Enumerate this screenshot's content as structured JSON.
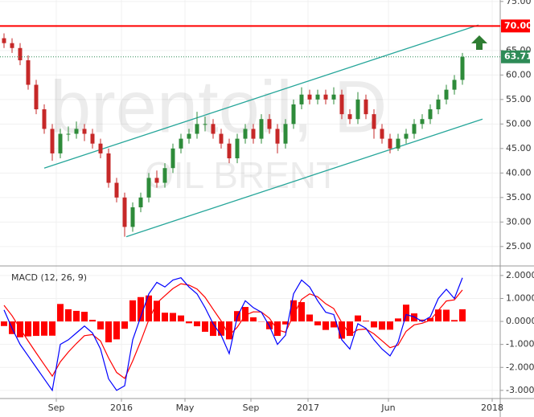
{
  "chart_data": [
    {
      "type": "candlestick",
      "title": "brentoil, D",
      "subtitle": "OIL BRENT",
      "up_color": "#2e8b3a",
      "down_color": "#c62828",
      "grid": true,
      "xlim": [
        0,
        62.2
      ],
      "xticks": [
        {
          "value": 7,
          "label": "Sep"
        },
        {
          "value": 15.1,
          "label": "2016"
        },
        {
          "value": 23,
          "label": "May"
        },
        {
          "value": 31.2,
          "label": "Sep"
        },
        {
          "value": 38.3,
          "label": "2017"
        },
        {
          "value": 48.3,
          "label": "Jun"
        },
        {
          "value": 61.2,
          "label": "2018"
        }
      ],
      "ylim": [
        21.2,
        75.3
      ],
      "yticks": [
        {
          "value": 25,
          "label": "25.00"
        },
        {
          "value": 30,
          "label": "30.00"
        },
        {
          "value": 35,
          "label": "35.00"
        },
        {
          "value": 40,
          "label": "40.00"
        },
        {
          "value": 45,
          "label": "45.00"
        },
        {
          "value": 50,
          "label": "50.00"
        },
        {
          "value": 55,
          "label": "55.00"
        },
        {
          "value": 60,
          "label": "60.00"
        },
        {
          "value": 65,
          "label": "65.00"
        },
        {
          "value": 70,
          "label": "70.00"
        },
        {
          "value": 75,
          "label": "75.00"
        }
      ],
      "ohlc": [
        [
          67.5,
          68.5,
          65.5,
          66.5
        ],
        [
          66.5,
          67.5,
          64.5,
          65.5
        ],
        [
          65.5,
          66.5,
          62,
          63
        ],
        [
          63,
          64,
          57,
          58
        ],
        [
          58,
          59,
          52,
          53
        ],
        [
          53,
          54,
          48,
          49
        ],
        [
          49,
          50,
          42.5,
          44
        ],
        [
          44,
          49,
          43,
          48
        ],
        [
          48,
          49.5,
          46.5,
          48
        ],
        [
          48,
          50.5,
          47,
          49
        ],
        [
          49,
          50,
          46.5,
          48
        ],
        [
          48,
          49,
          45,
          46
        ],
        [
          46,
          47,
          43,
          44
        ],
        [
          44,
          45,
          37,
          38
        ],
        [
          38,
          39,
          34,
          35
        ],
        [
          35,
          36,
          27,
          29
        ],
        [
          29,
          34,
          28,
          33
        ],
        [
          33,
          36,
          32,
          35
        ],
        [
          35,
          40,
          34,
          39
        ],
        [
          39,
          40.5,
          37,
          38
        ],
        [
          38,
          42,
          37,
          41
        ],
        [
          41,
          46,
          40,
          45
        ],
        [
          45,
          48,
          44,
          47
        ],
        [
          47,
          49,
          46,
          48
        ],
        [
          48,
          52.5,
          47,
          50
        ],
        [
          50,
          51.5,
          48.5,
          50
        ],
        [
          50,
          51,
          47,
          48
        ],
        [
          48,
          49,
          45,
          46
        ],
        [
          46,
          47,
          42,
          43
        ],
        [
          43,
          48,
          42,
          47
        ],
        [
          47,
          50,
          46,
          49
        ],
        [
          49,
          50,
          46,
          47
        ],
        [
          47,
          52,
          46,
          51
        ],
        [
          51,
          52,
          48,
          49
        ],
        [
          49,
          50,
          44,
          46
        ],
        [
          46,
          51,
          45,
          50
        ],
        [
          50,
          55,
          49,
          54
        ],
        [
          54,
          57.5,
          53,
          56
        ],
        [
          56,
          57,
          54,
          55
        ],
        [
          55,
          57,
          54,
          56
        ],
        [
          56,
          57,
          54,
          55
        ],
        [
          55,
          57.5,
          54,
          56
        ],
        [
          56,
          57,
          51,
          52
        ],
        [
          52,
          53,
          50,
          51
        ],
        [
          51,
          56.5,
          50,
          55
        ],
        [
          55,
          56,
          51,
          52
        ],
        [
          52,
          53,
          47,
          49
        ],
        [
          49,
          50,
          46,
          47
        ],
        [
          47,
          48,
          44,
          45
        ],
        [
          45,
          48,
          44.5,
          47
        ],
        [
          47,
          49,
          46,
          48
        ],
        [
          48,
          51,
          47,
          50
        ],
        [
          50,
          52,
          49,
          51
        ],
        [
          51,
          54,
          50,
          53
        ],
        [
          53,
          56,
          52,
          55
        ],
        [
          55,
          58,
          54,
          57
        ],
        [
          57,
          60,
          56,
          59
        ],
        [
          59,
          64.5,
          58,
          63.71
        ]
      ],
      "hlines": [
        {
          "value": 70,
          "label": "70.00",
          "color": "#ff0000"
        },
        {
          "value": 63.71,
          "label": "63.71",
          "color": "#2e8b57"
        }
      ],
      "trendlines": [
        {
          "x": [
            5.5,
            59.5
          ],
          "y": [
            41.0,
            70.2
          ],
          "color": "#26a69a"
        },
        {
          "x": [
            15.7,
            60
          ],
          "y": [
            27.0,
            51.0
          ],
          "color": "#26a69a"
        }
      ]
    },
    {
      "type": "macd",
      "title": "MACD (12, 26, 9)",
      "ylim": [
        -3.32,
        2.38
      ],
      "yticks": [
        {
          "value": 2,
          "label": "2.0000"
        },
        {
          "value": 1,
          "label": "1.0000"
        },
        {
          "value": 0,
          "label": "0.0000"
        },
        {
          "value": -1,
          "label": "-1.0000"
        },
        {
          "value": -2,
          "label": "-2.0000"
        },
        {
          "value": -3,
          "label": "-3.0000"
        }
      ],
      "macd": {
        "color": "#0000ff",
        "values": [
          0.5,
          -0.3,
          -1,
          -1.5,
          -2,
          -2.5,
          -3,
          -1,
          -0.8,
          -0.5,
          -0.2,
          -0.5,
          -1.2,
          -2.5,
          -3,
          -2.8,
          -0.8,
          0.2,
          1.2,
          1.7,
          1.5,
          1.8,
          1.9,
          1.5,
          1.2,
          0.6,
          -0.1,
          -0.6,
          -1.4,
          0.2,
          0.9,
          0.6,
          0.4,
          -0.2,
          -1.0,
          -0.6,
          1.2,
          1.8,
          1.5,
          0.9,
          0.4,
          0.3,
          -0.8,
          -1.2,
          -0.1,
          -0.3,
          -0.8,
          -1.2,
          -1.5,
          -0.9,
          0.3,
          0.2,
          0.0,
          0.2,
          1.0,
          1.4,
          1.0,
          1.9
        ]
      },
      "signal": {
        "color": "#ff0000",
        "values": [
          0.7,
          0.25,
          -0.31,
          -0.85,
          -1.37,
          -1.88,
          -2.38,
          -1.76,
          -1.33,
          -0.96,
          -0.62,
          -0.57,
          -0.85,
          -1.59,
          -2.22,
          -2.48,
          -1.72,
          -0.86,
          0.07,
          0.8,
          1.12,
          1.43,
          1.64,
          1.58,
          1.41,
          1.05,
          0.53,
          0.02,
          -0.62,
          -0.25,
          0.27,
          0.42,
          0.41,
          0.14,
          -0.37,
          -0.47,
          0.28,
          0.96,
          1.2,
          1.07,
          0.77,
          0.56,
          -0.05,
          -0.57,
          -0.36,
          -0.33,
          -0.54,
          -0.84,
          -1.14,
          -1.03,
          -0.43,
          -0.15,
          -0.08,
          0.05,
          0.48,
          0.89,
          0.94,
          1.37
        ]
      },
      "histogram": {
        "color": "#ff0000",
        "values": [
          -0.2,
          -0.55,
          -0.69,
          -0.65,
          -0.63,
          -0.62,
          -0.62,
          0.76,
          0.53,
          0.46,
          0.42,
          0.07,
          -0.35,
          -0.91,
          -0.78,
          -0.32,
          0.92,
          1.06,
          1.13,
          0.9,
          0.38,
          0.37,
          0.26,
          -0.08,
          -0.21,
          -0.45,
          -0.63,
          -0.62,
          -0.78,
          0.45,
          0.63,
          0.18,
          -0.01,
          -0.34,
          -0.63,
          -0.13,
          0.92,
          0.84,
          0.3,
          -0.17,
          -0.37,
          -0.26,
          -0.75,
          -0.63,
          0.26,
          0.03,
          -0.26,
          -0.36,
          -0.36,
          0.13,
          0.73,
          0.35,
          0.08,
          0.15,
          0.52,
          0.51,
          0.06,
          0.53
        ]
      }
    }
  ]
}
